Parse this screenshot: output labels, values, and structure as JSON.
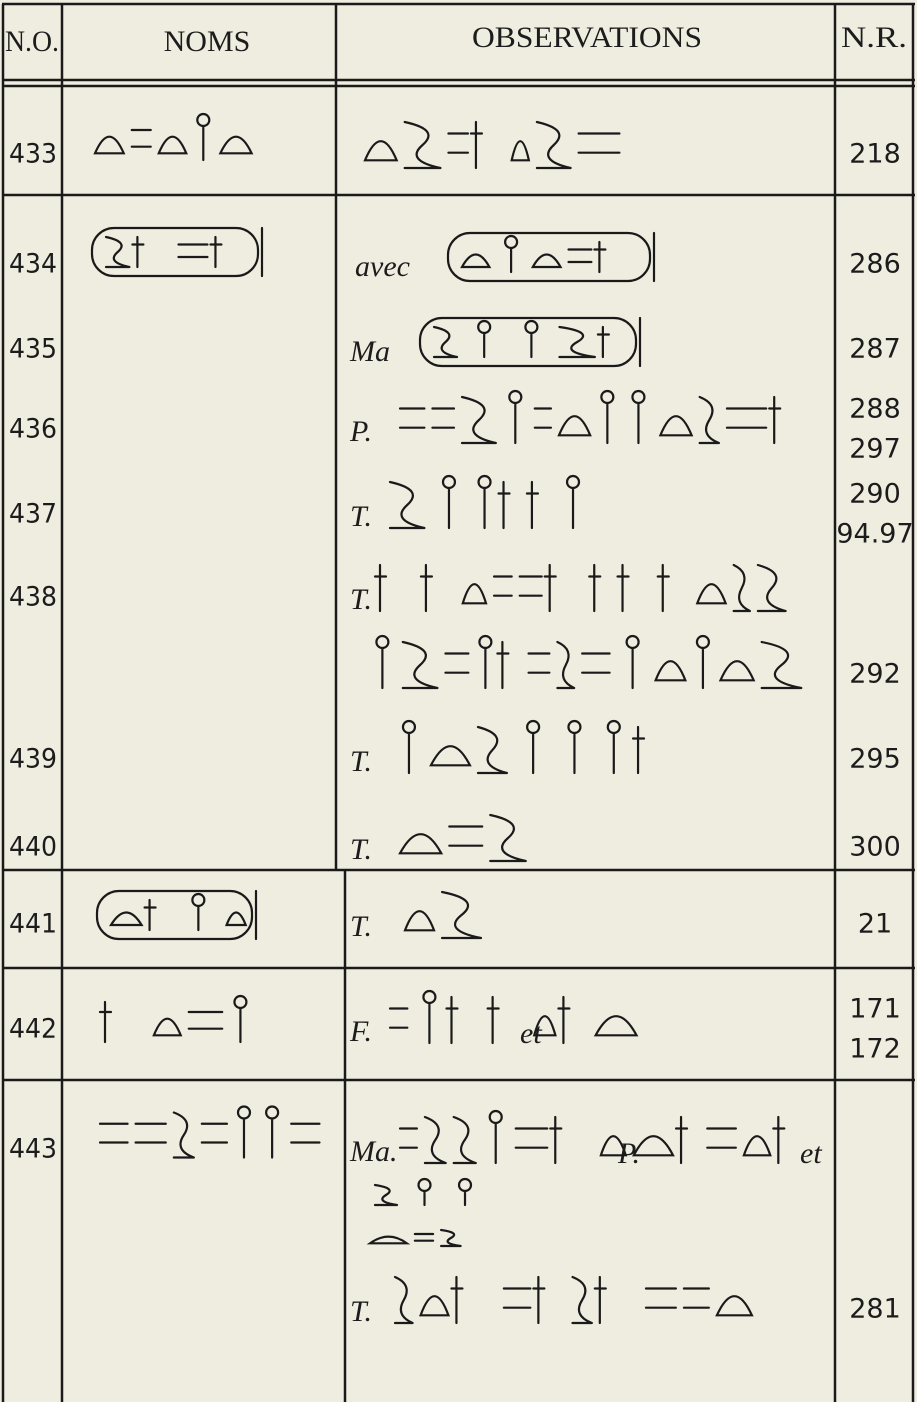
{
  "header": {
    "no": "N.O.",
    "names": "NOMS",
    "observations": "OBSERVATIONS",
    "nr": "N.R."
  },
  "entries": [
    {
      "no": "433",
      "lines": [
        {
          "nr": [
            "218"
          ]
        }
      ]
    },
    {
      "no": "434",
      "lines": [
        {
          "prefix": "avec",
          "nr": [
            "286"
          ]
        }
      ]
    },
    {
      "no": "435",
      "lines": [
        {
          "prefix": "Ma",
          "nr": [
            "287"
          ]
        }
      ]
    },
    {
      "no": "436",
      "lines": [
        {
          "prefix": "P.",
          "nr": [
            "288",
            "297"
          ]
        }
      ]
    },
    {
      "no": "437",
      "lines": [
        {
          "prefix": "T.",
          "nr": [
            "290",
            "94.97"
          ]
        }
      ]
    },
    {
      "no": "438",
      "lines": [
        {
          "prefix": "T."
        },
        {
          "nr": [
            "292"
          ]
        }
      ]
    },
    {
      "no": "439",
      "lines": [
        {
          "prefix": "T.",
          "nr": [
            "295"
          ]
        }
      ]
    },
    {
      "no": "440",
      "lines": [
        {
          "prefix": "T.",
          "nr": [
            "300"
          ]
        }
      ]
    },
    {
      "no": "441",
      "lines": [
        {
          "prefix": "T.",
          "nr": [
            "21"
          ]
        }
      ]
    },
    {
      "no": "442",
      "lines": [
        {
          "prefix": "F.",
          "words": [
            "et"
          ],
          "nr": [
            "171",
            "172"
          ]
        }
      ]
    },
    {
      "no": "443",
      "lines": [
        {
          "prefix": "Ma.",
          "words": [
            "P.",
            "et"
          ]
        },
        {
          "prefix": "T.",
          "nr": [
            "281"
          ]
        }
      ]
    }
  ]
}
